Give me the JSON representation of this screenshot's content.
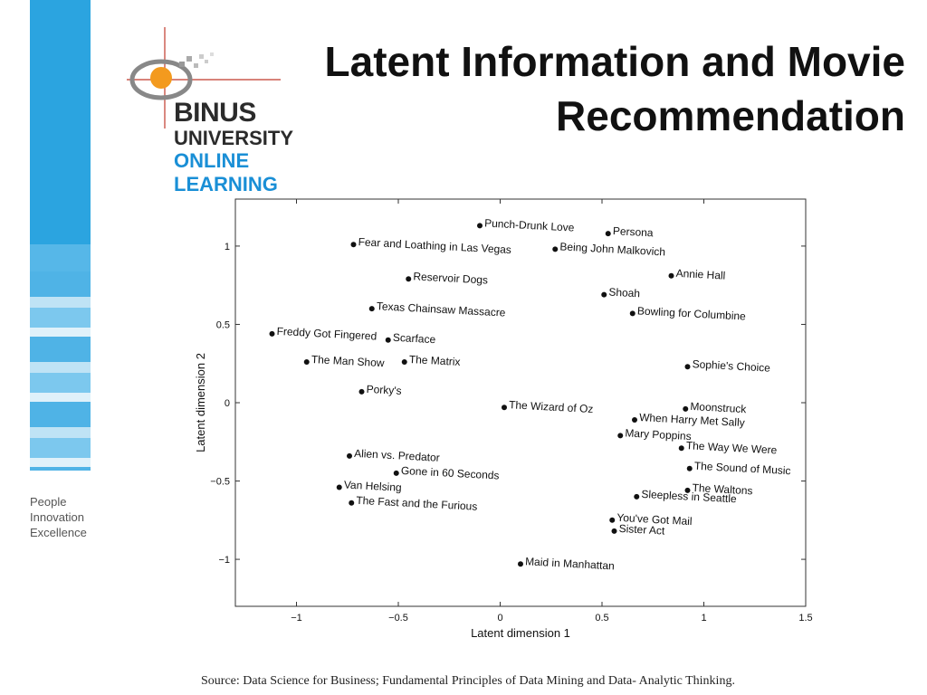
{
  "slide": {
    "title_line1": "Latent Information and Movie",
    "title_line2": "Recommendation",
    "source_label": "Source:",
    "source_text": "Data Science for Business; Fundamental Principles of Data Mining and Data- Analytic Thinking."
  },
  "logo": {
    "line1": "BINUS",
    "line2": "UNIVERSITY",
    "line3": "ONLINE",
    "line4": "LEARNING",
    "colors": {
      "dark": "#2b2b2b",
      "blue": "#1a8fd6",
      "orange": "#f39a1e"
    }
  },
  "motto": [
    "People",
    "Innovation",
    "Excellence"
  ],
  "colors": {
    "sidebar_blue": "#29a3df",
    "sidebar_light": "#bfe3f5"
  },
  "chart_data": {
    "type": "scatter",
    "xlabel": "Latent dimension 1",
    "ylabel": "Latent dimension 2",
    "xlim": [
      -1.3,
      1.5
    ],
    "ylim": [
      -1.3,
      1.3
    ],
    "xticks": [
      -1,
      -0.5,
      0,
      0.5,
      1,
      1.5
    ],
    "yticks": [
      1,
      0.5,
      0,
      -0.5,
      -1
    ],
    "xtick_labels": [
      "−1",
      "−0.5",
      "0",
      "0.5",
      "1",
      "1.5"
    ],
    "ytick_labels": [
      "1",
      "0.5",
      "0",
      "−0.5",
      "−1"
    ],
    "grid": false,
    "points": [
      {
        "label": "Punch-Drunk Love",
        "x": -0.1,
        "y": 1.13
      },
      {
        "label": "Persona",
        "x": 0.53,
        "y": 1.08
      },
      {
        "label": "Fear and Loathing in Las Vegas",
        "x": -0.72,
        "y": 1.01
      },
      {
        "label": "Being John Malkovich",
        "x": 0.27,
        "y": 0.98
      },
      {
        "label": "Reservoir Dogs",
        "x": -0.45,
        "y": 0.79
      },
      {
        "label": "Annie Hall",
        "x": 0.84,
        "y": 0.81
      },
      {
        "label": "Shoah",
        "x": 0.51,
        "y": 0.69
      },
      {
        "label": "Texas Chainsaw Massacre",
        "x": -0.63,
        "y": 0.6
      },
      {
        "label": "Bowling for Columbine",
        "x": 0.65,
        "y": 0.57
      },
      {
        "label": "Freddy Got Fingered",
        "x": -1.12,
        "y": 0.44
      },
      {
        "label": "Scarface",
        "x": -0.55,
        "y": 0.4
      },
      {
        "label": "The Man Show",
        "x": -0.95,
        "y": 0.26
      },
      {
        "label": "The Matrix",
        "x": -0.47,
        "y": 0.26
      },
      {
        "label": "Sophie's Choice",
        "x": 0.92,
        "y": 0.23
      },
      {
        "label": "Porky's",
        "x": -0.68,
        "y": 0.07
      },
      {
        "label": "The Wizard of Oz",
        "x": 0.02,
        "y": -0.03
      },
      {
        "label": "Moonstruck",
        "x": 0.91,
        "y": -0.04
      },
      {
        "label": "When Harry Met Sally",
        "x": 0.66,
        "y": -0.11
      },
      {
        "label": "Mary Poppins",
        "x": 0.59,
        "y": -0.21
      },
      {
        "label": "The Way We Were",
        "x": 0.89,
        "y": -0.29
      },
      {
        "label": "Alien vs. Predator",
        "x": -0.74,
        "y": -0.34
      },
      {
        "label": "Gone in 60 Seconds",
        "x": -0.51,
        "y": -0.45
      },
      {
        "label": "The Sound of Music",
        "x": 0.93,
        "y": -0.42
      },
      {
        "label": "Van Helsing",
        "x": -0.79,
        "y": -0.54
      },
      {
        "label": "The Waltons",
        "x": 0.92,
        "y": -0.56
      },
      {
        "label": "Sleepless in Seattle",
        "x": 0.67,
        "y": -0.6
      },
      {
        "label": "The Fast and the Furious",
        "x": -0.73,
        "y": -0.64
      },
      {
        "label": "You've Got Mail",
        "x": 0.55,
        "y": -0.75
      },
      {
        "label": "Sister Act",
        "x": 0.56,
        "y": -0.82
      },
      {
        "label": "Maid in Manhattan",
        "x": 0.1,
        "y": -1.03
      }
    ]
  }
}
